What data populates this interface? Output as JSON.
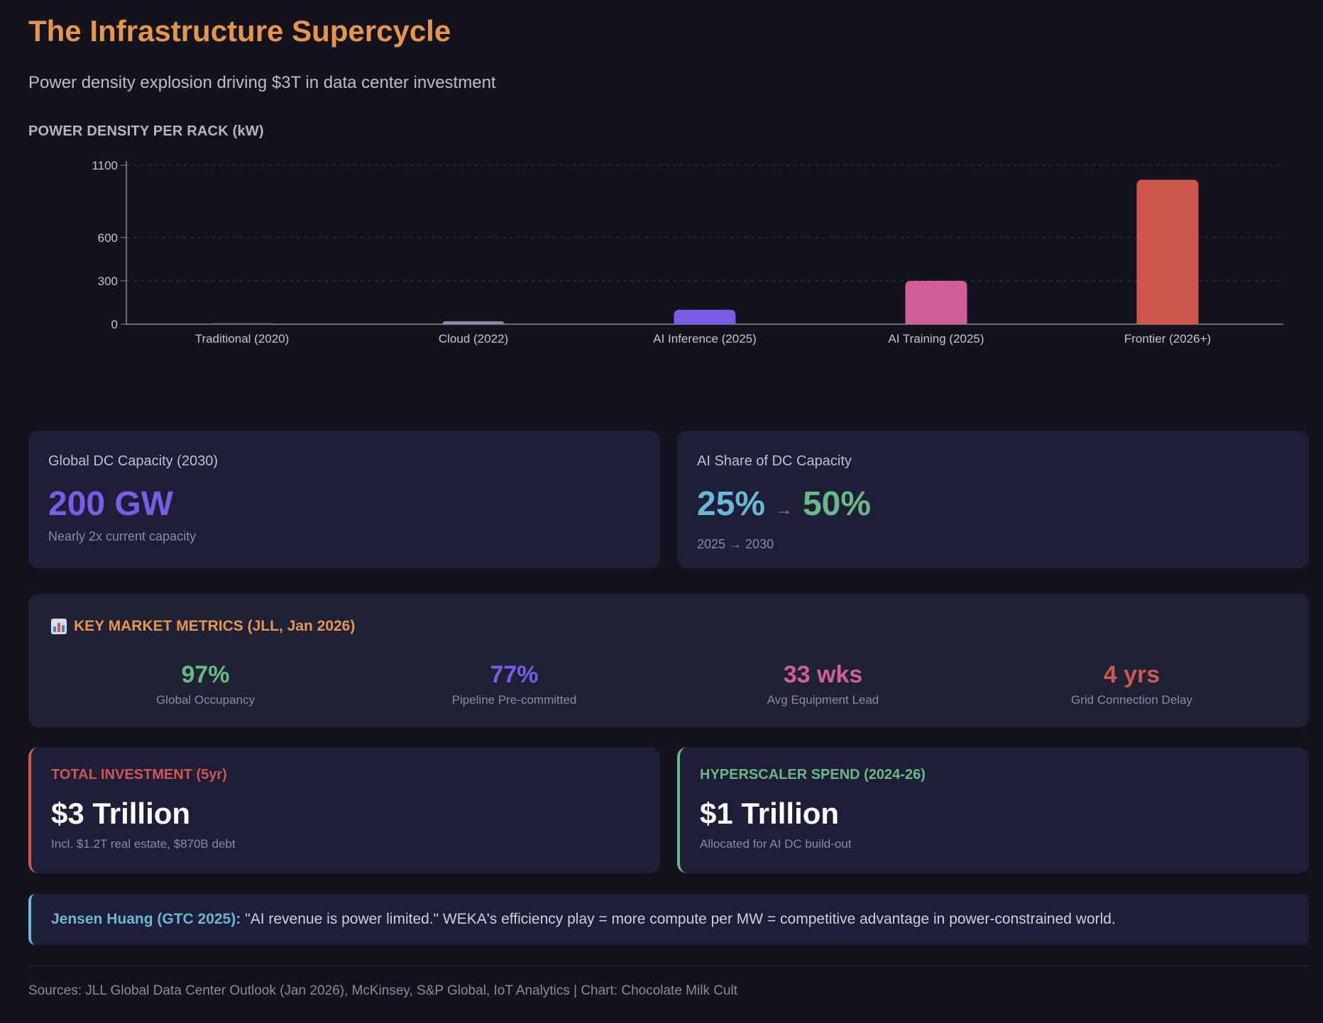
{
  "header": {
    "title": "The Infrastructure Supercycle",
    "subtitle": "Power density explosion driving $3T in data center investment"
  },
  "chart_heading": "POWER DENSITY PER RACK (kW)",
  "chart_data": {
    "type": "bar",
    "title": "POWER DENSITY PER RACK (kW)",
    "xlabel": "",
    "ylabel": "kW",
    "categories": [
      "Traditional (2020)",
      "Cloud (2022)",
      "AI Inference (2025)",
      "AI Training (2025)",
      "Frontier (2026+)"
    ],
    "values": [
      8,
      20,
      100,
      300,
      1000
    ],
    "colors": [
      "#5a5a72",
      "#8a8aa0",
      "#7b5ce6",
      "#cf5e9a",
      "#d0574e"
    ],
    "yticks": [
      0,
      300,
      600,
      1100
    ],
    "ylim": [
      0,
      1100
    ],
    "grid": true
  },
  "capacity_card": {
    "label": "Global DC Capacity (2030)",
    "value": "200 GW",
    "note": "Nearly 2x current capacity",
    "value_color": "#7b5ce6"
  },
  "share_card": {
    "label": "AI Share of DC Capacity",
    "from_value": "25%",
    "arrow": "→",
    "to_value": "50%",
    "note": "2025 → 2030",
    "from_color": "#6bb8d6",
    "to_color": "#6ab884"
  },
  "metrics": {
    "title": "KEY MARKET METRICS (JLL, Jan 2026)",
    "icon": "bar-chart-icon",
    "items": [
      {
        "value": "97%",
        "label": "Global Occupancy",
        "color": "#6ab884"
      },
      {
        "value": "77%",
        "label": "Pipeline Pre-committed",
        "color": "#7b5ce6"
      },
      {
        "value": "33 wks",
        "label": "Avg Equipment Lead",
        "color": "#cf5e9a"
      },
      {
        "value": "4 yrs",
        "label": "Grid Connection Delay",
        "color": "#d0574e"
      }
    ]
  },
  "investment": {
    "label": "TOTAL INVESTMENT (5yr)",
    "value": "$3 Trillion",
    "note": "Incl. $1.2T real estate, $870B debt",
    "color": "#d0574e"
  },
  "hyperscaler": {
    "label": "HYPERSCALER SPEND (2024-26)",
    "value": "$1 Trillion",
    "note": "Allocated for AI DC build-out",
    "color": "#6ab884"
  },
  "quote": {
    "speaker": "Jensen Huang (GTC 2025):",
    "text": "\"AI revenue is power limited.\" WEKA's efficiency play = more compute per MW = competitive advantage in power-constrained world."
  },
  "footer": {
    "sources": "Sources: JLL Global Data Center Outlook (Jan 2026), McKinsey, S&P Global, IoT Analytics | Chart: Chocolate Milk Cult"
  }
}
